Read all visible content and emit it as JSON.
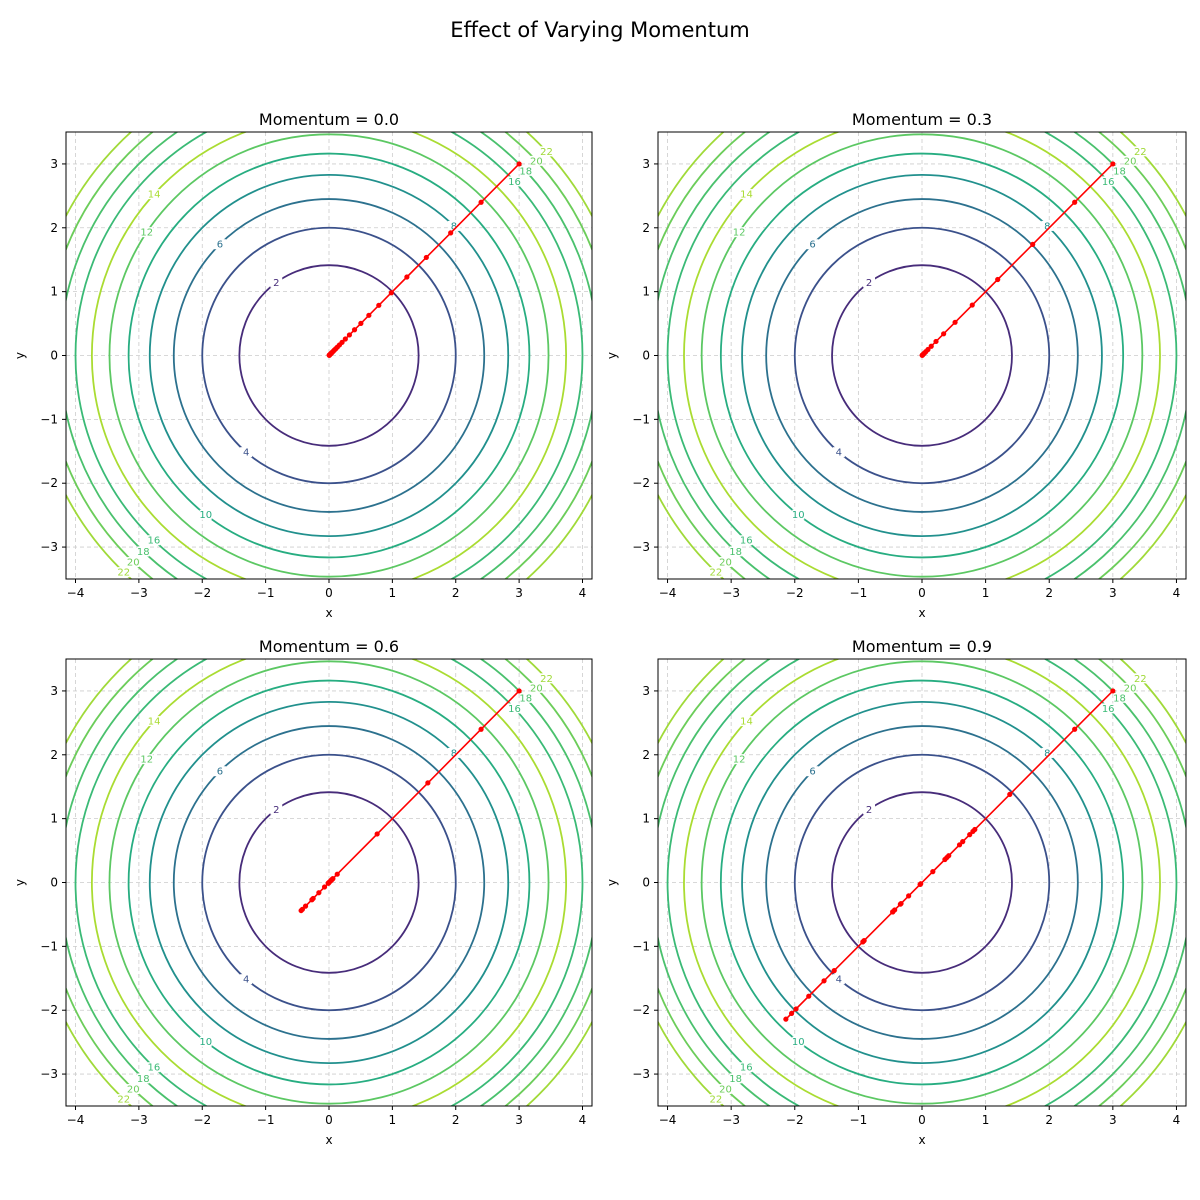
{
  "figure": {
    "title": "Effect of Varying Momentum"
  },
  "colors": {
    "path": "#ff0000",
    "grid": "#cccccc",
    "levels": {
      "2": "#472c7a",
      "4": "#3b518b",
      "6": "#2c718e",
      "8": "#21908d",
      "10": "#27ad81",
      "12": "#5cc863",
      "14": "#aadc32",
      "16": "#3aba76",
      "18": "#4ac16d",
      "20": "#6ccd5a",
      "22": "#a0da39"
    }
  },
  "chart_data": [
    {
      "type": "contour",
      "title": "Momentum = 0.0",
      "xlabel": "x",
      "ylabel": "y",
      "xlim": [
        -4.15,
        4.15
      ],
      "ylim": [
        -3.5,
        3.5
      ],
      "xticks": [
        -4,
        -3,
        -2,
        -1,
        0,
        1,
        2,
        3,
        4
      ],
      "yticks": [
        -3,
        -2,
        -1,
        0,
        1,
        2,
        3
      ],
      "grid": true,
      "contour_levels": [
        2,
        4,
        6,
        8,
        10,
        12,
        14,
        16,
        18,
        20,
        22
      ],
      "path": {
        "x": [
          3,
          2.4,
          1.92,
          1.536,
          1.229,
          0.983,
          0.786,
          0.629,
          0.503,
          0.403,
          0.322,
          0.258,
          0.206,
          0.165,
          0.132,
          0.106,
          0.084,
          0.068,
          0.054,
          0.043,
          0.035,
          0.028,
          0.022,
          0.018,
          0.014,
          0.011,
          0.009,
          0.007,
          0.006,
          0.005,
          0.004
        ],
        "y": [
          3,
          2.4,
          1.92,
          1.536,
          1.229,
          0.983,
          0.786,
          0.629,
          0.503,
          0.403,
          0.322,
          0.258,
          0.206,
          0.165,
          0.132,
          0.106,
          0.084,
          0.068,
          0.054,
          0.043,
          0.035,
          0.028,
          0.022,
          0.018,
          0.014,
          0.011,
          0.009,
          0.007,
          0.006,
          0.005,
          0.004
        ]
      }
    },
    {
      "type": "contour",
      "title": "Momentum = 0.3",
      "xlabel": "x",
      "ylabel": "y",
      "xlim": [
        -4.15,
        4.15
      ],
      "ylim": [
        -3.5,
        3.5
      ],
      "xticks": [
        -4,
        -3,
        -2,
        -1,
        0,
        1,
        2,
        3,
        4
      ],
      "yticks": [
        -3,
        -2,
        -1,
        0,
        1,
        2,
        3
      ],
      "grid": true,
      "contour_levels": [
        2,
        4,
        6,
        8,
        10,
        12,
        14,
        16,
        18,
        20,
        22
      ],
      "path": {
        "x": [
          3,
          2.4,
          1.74,
          1.19,
          0.79,
          0.52,
          0.34,
          0.22,
          0.145,
          0.094,
          0.061,
          0.04,
          0.026,
          0.017,
          0.011,
          0.007,
          0.005,
          0.003
        ],
        "y": [
          3,
          2.4,
          1.74,
          1.19,
          0.79,
          0.52,
          0.34,
          0.22,
          0.145,
          0.094,
          0.061,
          0.04,
          0.026,
          0.017,
          0.011,
          0.007,
          0.005,
          0.003
        ]
      }
    },
    {
      "type": "contour",
      "title": "Momentum = 0.6",
      "xlabel": "x",
      "ylabel": "y",
      "xlim": [
        -4.15,
        4.15
      ],
      "ylim": [
        -3.5,
        3.5
      ],
      "xticks": [
        -4,
        -3,
        -2,
        -1,
        0,
        1,
        2,
        3,
        4
      ],
      "yticks": [
        -3,
        -2,
        -1,
        0,
        1,
        2,
        3
      ],
      "grid": true,
      "contour_levels": [
        2,
        4,
        6,
        8,
        10,
        12,
        14,
        16,
        18,
        20,
        22
      ],
      "path": {
        "x": [
          3,
          2.4,
          1.56,
          0.76,
          0.13,
          -0.25,
          -0.42,
          -0.44,
          -0.37,
          -0.27,
          -0.16,
          -0.07,
          0.0,
          0.04,
          0.06,
          0.06,
          0.05,
          0.03,
          0.02,
          0.0,
          -0.01,
          -0.01,
          -0.01
        ],
        "y": [
          3,
          2.4,
          1.56,
          0.76,
          0.13,
          -0.25,
          -0.42,
          -0.44,
          -0.37,
          -0.27,
          -0.16,
          -0.07,
          0.0,
          0.04,
          0.06,
          0.06,
          0.05,
          0.03,
          0.02,
          0.0,
          -0.01,
          -0.01,
          -0.01
        ]
      }
    },
    {
      "type": "contour",
      "title": "Momentum = 0.9",
      "xlabel": "x",
      "ylabel": "y",
      "xlim": [
        -4.15,
        4.15
      ],
      "ylim": [
        -3.5,
        3.5
      ],
      "xticks": [
        -4,
        -3,
        -2,
        -1,
        0,
        1,
        2,
        3,
        4
      ],
      "yticks": [
        -3,
        -2,
        -1,
        0,
        1,
        2,
        3
      ],
      "grid": true,
      "contour_levels": [
        2,
        4,
        6,
        8,
        10,
        12,
        14,
        16,
        18,
        20,
        22
      ],
      "path": {
        "x": [
          3,
          2.4,
          1.38,
          0.42,
          -0.33,
          -0.91,
          -1.54,
          -1.98,
          -2.14,
          -2.05,
          -1.78,
          -1.38,
          -0.93,
          -0.46,
          -0.02,
          0.36,
          0.64,
          0.8,
          0.83,
          0.75,
          0.59,
          0.39,
          0.17,
          -0.03,
          -0.21,
          -0.34,
          -0.43,
          -0.46
        ],
        "y": [
          3,
          2.4,
          1.38,
          0.42,
          -0.33,
          -0.91,
          -1.54,
          -1.98,
          -2.14,
          -2.05,
          -1.78,
          -1.38,
          -0.93,
          -0.46,
          -0.02,
          0.36,
          0.64,
          0.8,
          0.83,
          0.75,
          0.59,
          0.39,
          0.17,
          -0.03,
          -0.21,
          -0.34,
          -0.43,
          -0.46
        ]
      }
    }
  ]
}
